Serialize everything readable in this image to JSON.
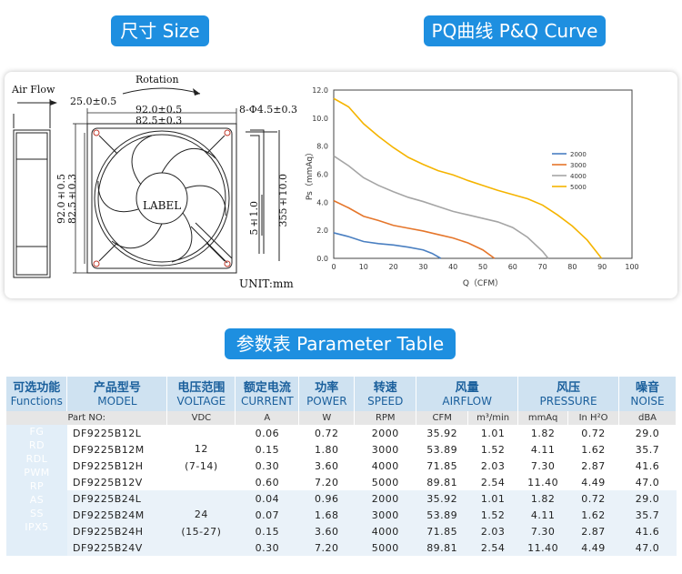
{
  "headers": {
    "size": "尺寸 Size",
    "pq": "PQ曲线 P&Q Curve",
    "params": "参数表 Parameter Table"
  },
  "drawing": {
    "air_flow": "Air Flow",
    "rotation": "Rotation",
    "dim_depth": "25.0±0.5",
    "dim_width": "92.0±0.5",
    "dim_hole": "82.5±0.3",
    "dim_holes": "8-Φ4.5±0.3",
    "dim_height": "92.0±0.5",
    "dim_height_hole": "82.5±0.3",
    "dim_wire_end": "5±1.0",
    "dim_wire_len": "355±10.0",
    "label": "LABEL",
    "unit": "UNIT:mm"
  },
  "chart_data": {
    "type": "line",
    "xlabel": "Q（CFM）",
    "ylabel": "Ps（mmAq）",
    "xlim": [
      0,
      100
    ],
    "ylim": [
      0,
      12
    ],
    "xticks": [
      0,
      10,
      20,
      30,
      40,
      50,
      60,
      70,
      80,
      90,
      100
    ],
    "yticks": [
      0.0,
      2.0,
      4.0,
      6.0,
      8.0,
      10.0,
      12.0
    ],
    "legend_position": "right",
    "series": [
      {
        "name": "2000",
        "color": "#4a7fc1",
        "x": [
          0,
          5,
          10,
          15,
          20,
          25,
          30,
          33,
          35.9
        ],
        "y": [
          1.82,
          1.55,
          1.2,
          1.05,
          0.95,
          0.8,
          0.6,
          0.35,
          0
        ]
      },
      {
        "name": "3000",
        "color": "#e5762b",
        "x": [
          0,
          5,
          10,
          15,
          20,
          25,
          30,
          35,
          40,
          45,
          50,
          53.9
        ],
        "y": [
          4.11,
          3.6,
          3.0,
          2.7,
          2.35,
          2.15,
          1.95,
          1.7,
          1.45,
          1.1,
          0.6,
          0
        ]
      },
      {
        "name": "4000",
        "color": "#a5a5a5",
        "x": [
          0,
          5,
          10,
          15,
          20,
          25,
          30,
          35,
          40,
          45,
          50,
          55,
          60,
          65,
          70,
          71.9
        ],
        "y": [
          7.3,
          6.6,
          5.75,
          5.2,
          4.75,
          4.35,
          4.05,
          3.7,
          3.35,
          3.1,
          2.85,
          2.6,
          2.2,
          1.5,
          0.5,
          0
        ]
      },
      {
        "name": "5000",
        "color": "#f5b400",
        "x": [
          0,
          5,
          10,
          15,
          20,
          25,
          30,
          35,
          40,
          45,
          50,
          55,
          60,
          65,
          70,
          75,
          80,
          85,
          89.8
        ],
        "y": [
          11.4,
          10.8,
          9.6,
          8.7,
          7.9,
          7.2,
          6.7,
          6.25,
          5.95,
          5.55,
          5.2,
          4.85,
          4.55,
          4.25,
          3.8,
          3.1,
          2.3,
          1.3,
          0
        ]
      }
    ]
  },
  "table": {
    "headers": [
      {
        "zh": "可选功能",
        "en": "Functions"
      },
      {
        "zh": "产品型号",
        "en": "MODEL"
      },
      {
        "zh": "电压范围",
        "en": "VOLTAGE"
      },
      {
        "zh": "额定电流",
        "en": "CURRENT"
      },
      {
        "zh": "功率",
        "en": "POWER"
      },
      {
        "zh": "转速",
        "en": "SPEED"
      },
      {
        "zh": "风量",
        "en": "AIRFLOW"
      },
      {
        "zh": "风压",
        "en": "PRESSURE"
      },
      {
        "zh": "噪音",
        "en": "NOISE"
      }
    ],
    "units": [
      "Part NO:",
      "VDC",
      "A",
      "W",
      "RPM",
      "CFM",
      "m³/min",
      "mmAq",
      "In H²O",
      "dBA"
    ],
    "functions": [
      "FG",
      "RD",
      "RDL",
      "PWM",
      "RP",
      "AS",
      "SS",
      "IPX5"
    ],
    "voltage_groups": [
      {
        "rated": "12",
        "range": "(7-14)"
      },
      {
        "rated": "24",
        "range": "(15-27)"
      }
    ],
    "rows": [
      {
        "model": "DF9225B12L",
        "current": "0.06",
        "power": "0.72",
        "speed": "2000",
        "cfm": "35.92",
        "m3": "1.01",
        "mmaq": "1.82",
        "inh2o": "0.72",
        "dba": "29.0"
      },
      {
        "model": "DF9225B12M",
        "current": "0.15",
        "power": "1.80",
        "speed": "3000",
        "cfm": "53.89",
        "m3": "1.52",
        "mmaq": "4.11",
        "inh2o": "1.62",
        "dba": "35.7"
      },
      {
        "model": "DF9225B12H",
        "current": "0.30",
        "power": "3.60",
        "speed": "4000",
        "cfm": "71.85",
        "m3": "2.03",
        "mmaq": "7.30",
        "inh2o": "2.87",
        "dba": "41.6"
      },
      {
        "model": "DF9225B12V",
        "current": "0.60",
        "power": "7.20",
        "speed": "5000",
        "cfm": "89.81",
        "m3": "2.54",
        "mmaq": "11.40",
        "inh2o": "4.49",
        "dba": "47.0"
      },
      {
        "model": "DF9225B24L",
        "current": "0.04",
        "power": "0.96",
        "speed": "2000",
        "cfm": "35.92",
        "m3": "1.01",
        "mmaq": "1.82",
        "inh2o": "0.72",
        "dba": "29.0"
      },
      {
        "model": "DF9225B24M",
        "current": "0.07",
        "power": "1.68",
        "speed": "3000",
        "cfm": "53.89",
        "m3": "1.52",
        "mmaq": "4.11",
        "inh2o": "1.62",
        "dba": "35.7"
      },
      {
        "model": "DF9225B24H",
        "current": "0.15",
        "power": "3.60",
        "speed": "4000",
        "cfm": "71.85",
        "m3": "2.03",
        "mmaq": "7.30",
        "inh2o": "2.87",
        "dba": "41.6"
      },
      {
        "model": "DF9225B24V",
        "current": "0.30",
        "power": "7.20",
        "speed": "5000",
        "cfm": "89.81",
        "m3": "2.54",
        "mmaq": "11.40",
        "inh2o": "4.49",
        "dba": "47.0"
      }
    ]
  }
}
